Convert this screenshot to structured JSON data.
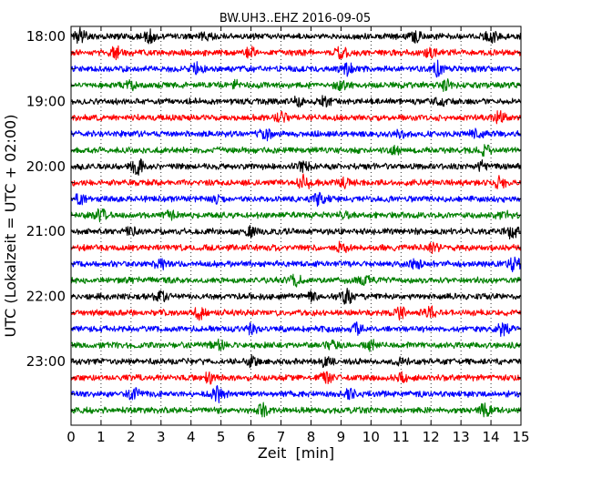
{
  "chart_data": {
    "type": "line",
    "title": "BW.UH3..EHZ 2016-09-05",
    "xlabel": "Zeit  [min]",
    "ylabel": "UTC (Lokalzeit = UTC + 02:00)",
    "xlim": [
      0,
      15
    ],
    "x_ticks": [
      "0",
      "1",
      "2",
      "3",
      "4",
      "5",
      "6",
      "7",
      "8",
      "9",
      "10",
      "11",
      "12",
      "13",
      "14",
      "15"
    ],
    "y_ticks": [
      "18:00",
      "19:00",
      "20:00",
      "21:00",
      "22:00",
      "23:00"
    ],
    "grid": "vertical-dotted",
    "trace_colors": [
      "#000000",
      "#ff0000",
      "#0000ff",
      "#008000"
    ],
    "row_count": 24,
    "minutes_per_row": 15,
    "first_row_start": "18:00",
    "bursts": [
      [
        [
          0.3,
          1.0
        ],
        [
          2.6,
          0.9
        ],
        [
          4.5,
          0.6
        ],
        [
          11.5,
          0.7
        ],
        [
          14.0,
          0.9
        ]
      ],
      [
        [
          1.5,
          0.8
        ],
        [
          6.0,
          0.7
        ],
        [
          9.0,
          0.9
        ],
        [
          12.0,
          0.6
        ]
      ],
      [
        [
          4.2,
          0.8
        ],
        [
          9.2,
          0.7
        ],
        [
          12.2,
          1.0
        ]
      ],
      [
        [
          2.0,
          0.6
        ],
        [
          5.5,
          0.5
        ],
        [
          9.0,
          0.5
        ],
        [
          12.5,
          0.6
        ]
      ],
      [
        [
          7.5,
          0.7
        ],
        [
          8.5,
          0.7
        ],
        [
          12.3,
          0.5
        ]
      ],
      [
        [
          7.0,
          0.6
        ],
        [
          14.3,
          0.8
        ]
      ],
      [
        [
          6.5,
          0.7
        ],
        [
          11.0,
          0.5
        ],
        [
          13.5,
          0.6
        ]
      ],
      [
        [
          10.8,
          0.5
        ],
        [
          13.8,
          0.6
        ]
      ],
      [
        [
          2.2,
          1.1
        ],
        [
          7.8,
          0.7
        ],
        [
          13.7,
          0.6
        ]
      ],
      [
        [
          7.8,
          1.0
        ],
        [
          9.1,
          0.6
        ],
        [
          14.3,
          0.7
        ]
      ],
      [
        [
          0.3,
          0.7
        ],
        [
          4.8,
          0.6
        ],
        [
          8.3,
          1.2
        ]
      ],
      [
        [
          1.0,
          0.7
        ],
        [
          3.3,
          0.6
        ],
        [
          9.1,
          0.6
        ],
        [
          14.4,
          0.5
        ]
      ],
      [
        [
          2.0,
          0.5
        ],
        [
          6.0,
          0.6
        ],
        [
          14.7,
          0.9
        ]
      ],
      [
        [
          9.0,
          0.7
        ],
        [
          12.1,
          0.6
        ]
      ],
      [
        [
          3.0,
          0.6
        ],
        [
          11.5,
          0.6
        ],
        [
          14.8,
          0.9
        ]
      ],
      [
        [
          7.5,
          0.8
        ],
        [
          9.8,
          0.6
        ]
      ],
      [
        [
          3.0,
          0.6
        ],
        [
          8.1,
          0.8
        ],
        [
          9.2,
          0.9
        ]
      ],
      [
        [
          4.3,
          0.8
        ],
        [
          11.0,
          0.7
        ],
        [
          12.0,
          0.7
        ]
      ],
      [
        [
          6.0,
          0.6
        ],
        [
          9.5,
          0.7
        ],
        [
          14.4,
          1.0
        ]
      ],
      [
        [
          4.9,
          0.7
        ],
        [
          8.7,
          0.6
        ],
        [
          10.0,
          0.7
        ]
      ],
      [
        [
          6.0,
          0.7
        ],
        [
          8.5,
          0.6
        ],
        [
          11.0,
          0.5
        ]
      ],
      [
        [
          4.6,
          0.7
        ],
        [
          8.5,
          0.6
        ],
        [
          11.0,
          0.6
        ]
      ],
      [
        [
          2.1,
          0.7
        ],
        [
          4.9,
          1.0
        ],
        [
          9.3,
          0.7
        ]
      ],
      [
        [
          6.4,
          0.8
        ],
        [
          13.8,
          0.9
        ]
      ]
    ]
  }
}
